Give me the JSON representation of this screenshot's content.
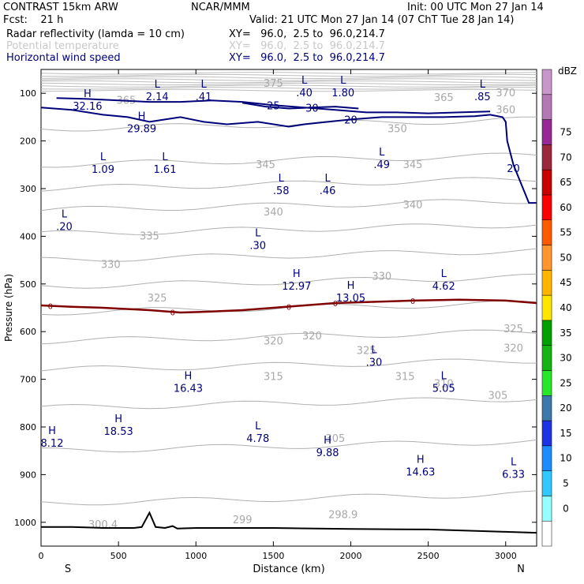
{
  "header": {
    "model": "CONTRAST 15km ARW",
    "center": "NCAR/MMM",
    "init": "Init: 00 UTC Mon 27 Jan 14",
    "fcst": "Fcst:    21 h",
    "valid": "Valid: 21 UTC Mon 27 Jan 14 (07 ChT Tue 28 Jan 14)"
  },
  "fields": [
    {
      "name": "Radar reflectivity (lamda = 10 cm)",
      "xy": "XY=   96.0,  2.5 to  96.0,214.7",
      "color": "#000000"
    },
    {
      "name": "Potential temperature",
      "xy": "XY=   96.0,  2.5 to  96.0,214.7",
      "color": "#c8c8c8"
    },
    {
      "name": "Horizontal wind speed",
      "xy": "XY=   96.0,  2.5 to  96.0,214.7",
      "color": "#00007a"
    }
  ],
  "chart_data": {
    "type": "cross-section contour",
    "xlabel": "Distance (km)",
    "ylabel": "Pressure (hPa)",
    "xlim": [
      0,
      3200
    ],
    "ylim": [
      1050,
      50
    ],
    "x_ticks": [
      0,
      500,
      1000,
      1500,
      2000,
      2500,
      3000
    ],
    "y_ticks": [
      100,
      200,
      300,
      400,
      500,
      600,
      700,
      800,
      900,
      1000
    ],
    "end_labels": {
      "left": "S",
      "right": "N"
    },
    "colorbar": {
      "unit": "dBZ",
      "levels": [
        0,
        5,
        10,
        15,
        20,
        25,
        30,
        35,
        40,
        45,
        50,
        55,
        60,
        65,
        70,
        75
      ],
      "colors": [
        "#ffffff",
        "#96ffff",
        "#32c8ff",
        "#1e8cff",
        "#1e32e6",
        "#3c78aa",
        "#28e628",
        "#14b414",
        "#00a000",
        "#ffe600",
        "#ffb400",
        "#ff9632",
        "#ff5a00",
        "#ff0000",
        "#c80000",
        "#9b283c",
        "#962896",
        "#b478b4",
        "#c896c8"
      ]
    },
    "wind_contours": [
      {
        "value": 20,
        "points": [
          [
            0,
            130
          ],
          [
            200,
            135
          ],
          [
            400,
            145
          ],
          [
            560,
            150
          ],
          [
            700,
            160
          ],
          [
            800,
            155
          ],
          [
            900,
            150
          ],
          [
            1050,
            160
          ],
          [
            1200,
            165
          ],
          [
            1400,
            160
          ],
          [
            1600,
            170
          ],
          [
            1700,
            165
          ],
          [
            1850,
            160
          ],
          [
            2000,
            155
          ],
          [
            2200,
            150
          ],
          [
            2400,
            150
          ],
          [
            2600,
            150
          ],
          [
            2800,
            148
          ],
          [
            2900,
            145
          ],
          [
            2980,
            150
          ],
          [
            3000,
            160
          ],
          [
            3010,
            200
          ],
          [
            3050,
            250
          ],
          [
            3100,
            290
          ],
          [
            3150,
            330
          ],
          [
            3200,
            330
          ]
        ]
      },
      {
        "value": 25,
        "points": [
          [
            100,
            110
          ],
          [
            300,
            112
          ],
          [
            500,
            115
          ],
          [
            700,
            118
          ],
          [
            900,
            118
          ],
          [
            1100,
            115
          ],
          [
            1300,
            118
          ],
          [
            1500,
            125
          ],
          [
            1700,
            130
          ],
          [
            1900,
            135
          ],
          [
            2100,
            140
          ],
          [
            2300,
            140
          ],
          [
            2500,
            142
          ],
          [
            2700,
            140
          ],
          [
            2900,
            138
          ]
        ]
      },
      {
        "value": 30,
        "points": [
          [
            1300,
            120
          ],
          [
            1450,
            128
          ],
          [
            1600,
            132
          ],
          [
            1750,
            130
          ],
          [
            1900,
            128
          ],
          [
            2050,
            132
          ]
        ]
      }
    ],
    "zero_line": {
      "label": "0",
      "points": [
        [
          0,
          545
        ],
        [
          200,
          548
        ],
        [
          400,
          550
        ],
        [
          700,
          555
        ],
        [
          900,
          560
        ],
        [
          1100,
          558
        ],
        [
          1300,
          555
        ],
        [
          1500,
          550
        ],
        [
          1700,
          545
        ],
        [
          1900,
          540
        ],
        [
          2100,
          538
        ],
        [
          2400,
          535
        ],
        [
          2700,
          533
        ],
        [
          3000,
          535
        ],
        [
          3200,
          540
        ]
      ]
    },
    "theta_labels": [
      {
        "value": "365",
        "x": 550,
        "p": 115
      },
      {
        "value": "375",
        "x": 1500,
        "p": 80
      },
      {
        "value": "365",
        "x": 2600,
        "p": 110
      },
      {
        "value": "370",
        "x": 3000,
        "p": 100
      },
      {
        "value": "360",
        "x": 3000,
        "p": 135
      },
      {
        "value": "350",
        "x": 2300,
        "p": 175
      },
      {
        "value": "345",
        "x": 1450,
        "p": 250
      },
      {
        "value": "345",
        "x": 2400,
        "p": 250
      },
      {
        "value": "340",
        "x": 1500,
        "p": 350
      },
      {
        "value": "340",
        "x": 2400,
        "p": 335
      },
      {
        "value": "335",
        "x": 700,
        "p": 400
      },
      {
        "value": "330",
        "x": 450,
        "p": 460
      },
      {
        "value": "330",
        "x": 2200,
        "p": 485
      },
      {
        "value": "325",
        "x": 750,
        "p": 530
      },
      {
        "value": "325",
        "x": 2100,
        "p": 640
      },
      {
        "value": "325",
        "x": 3050,
        "p": 595
      },
      {
        "value": "320",
        "x": 1500,
        "p": 620
      },
      {
        "value": "320",
        "x": 1750,
        "p": 610
      },
      {
        "value": "320",
        "x": 3050,
        "p": 635
      },
      {
        "value": "315",
        "x": 1500,
        "p": 695
      },
      {
        "value": "315",
        "x": 2350,
        "p": 695
      },
      {
        "value": "310",
        "x": 2600,
        "p": 710
      },
      {
        "value": "305",
        "x": 1900,
        "p": 825
      },
      {
        "value": "305",
        "x": 2950,
        "p": 735
      },
      {
        "value": "300.4",
        "x": 400,
        "p": 1005
      },
      {
        "value": "299",
        "x": 1300,
        "p": 995
      },
      {
        "value": "298.9",
        "x": 1950,
        "p": 985
      }
    ],
    "extrema": [
      {
        "type": "L",
        "value": "2.14",
        "x": 750,
        "p": 98
      },
      {
        "type": "L",
        "value": ".41",
        "x": 1050,
        "p": 98
      },
      {
        "type": "L",
        "value": ".40",
        "x": 1700,
        "p": 90
      },
      {
        "type": "L",
        "value": "1.80",
        "x": 1950,
        "p": 90
      },
      {
        "type": "L",
        "value": ".85",
        "x": 2850,
        "p": 98
      },
      {
        "type": "H",
        "value": "32.16",
        "x": 300,
        "p": 118
      },
      {
        "type": "H",
        "value": "29.89",
        "x": 650,
        "p": 165
      },
      {
        "type": "L",
        "value": "1.61",
        "x": 800,
        "p": 250
      },
      {
        "type": "L",
        "value": "1.09",
        "x": 400,
        "p": 250
      },
      {
        "type": "L",
        "value": ".49",
        "x": 2200,
        "p": 240
      },
      {
        "type": "L",
        "value": ".58",
        "x": 1550,
        "p": 295
      },
      {
        "type": "L",
        "value": ".46",
        "x": 1850,
        "p": 295
      },
      {
        "type": "L",
        "value": ".20",
        "x": 150,
        "p": 370
      },
      {
        "type": "L",
        "value": ".30",
        "x": 1400,
        "p": 410
      },
      {
        "type": "H",
        "value": "12.97",
        "x": 1650,
        "p": 495
      },
      {
        "type": "H",
        "value": "13.05",
        "x": 2000,
        "p": 520
      },
      {
        "type": "L",
        "value": "4.62",
        "x": 2600,
        "p": 495
      },
      {
        "type": "L",
        "value": ".30",
        "x": 2150,
        "p": 655
      },
      {
        "type": "H",
        "value": "16.43",
        "x": 950,
        "p": 710
      },
      {
        "type": "L",
        "value": "5.05",
        "x": 2600,
        "p": 710
      },
      {
        "type": "H",
        "value": "18.53",
        "x": 500,
        "p": 800
      },
      {
        "type": "H",
        "value": "8.12",
        "x": 0,
        "p": 825
      },
      {
        "type": "L",
        "value": "4.78",
        "x": 1400,
        "p": 815
      },
      {
        "type": "H",
        "value": "9.88",
        "x": 1850,
        "p": 845
      },
      {
        "type": "H",
        "value": "14.63",
        "x": 2450,
        "p": 885
      },
      {
        "type": "L",
        "value": "6.33",
        "x": 3050,
        "p": 890
      }
    ],
    "terrain": {
      "points": [
        [
          0,
          1010
        ],
        [
          200,
          1010
        ],
        [
          400,
          1012
        ],
        [
          600,
          1012
        ],
        [
          650,
          1010
        ],
        [
          700,
          980
        ],
        [
          740,
          1010
        ],
        [
          800,
          1012
        ],
        [
          850,
          1008
        ],
        [
          880,
          1013
        ],
        [
          1000,
          1012
        ],
        [
          1500,
          1012
        ],
        [
          2000,
          1014
        ],
        [
          2500,
          1015
        ],
        [
          3000,
          1020
        ],
        [
          3200,
          1022
        ]
      ]
    }
  }
}
